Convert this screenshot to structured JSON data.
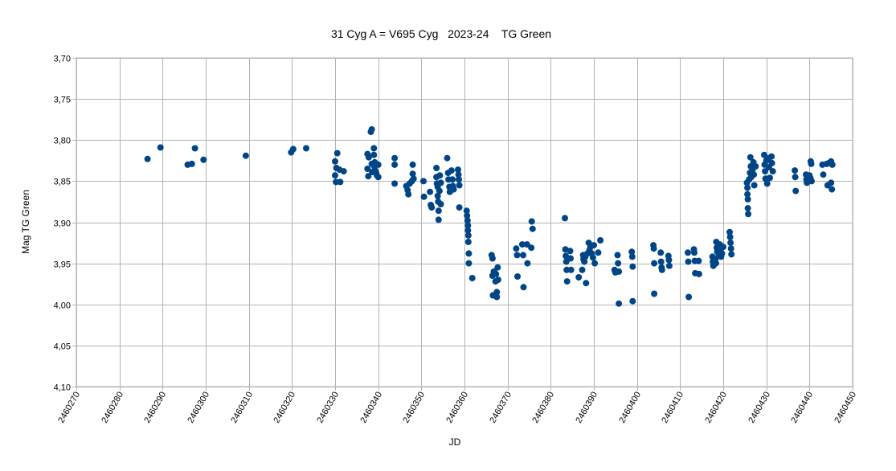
{
  "chart_data": {
    "type": "scatter",
    "title": "31 Cyg A = V695 Cyg   2023-24    TG Green",
    "xlabel": "JD",
    "ylabel": "Mag TG Green",
    "xlim": [
      2460270,
      2460450
    ],
    "ylim": [
      3.7,
      4.1
    ],
    "y_inverted": true,
    "grid": true,
    "legend": "none",
    "x_ticks": [
      2460270,
      2460280,
      2460290,
      2460300,
      2460310,
      2460320,
      2460330,
      2460340,
      2460350,
      2460360,
      2460370,
      2460380,
      2460390,
      2460400,
      2460410,
      2460420,
      2460430,
      2460440,
      2460450
    ],
    "y_ticks": [
      "3,70",
      "3,75",
      "3,80",
      "3,85",
      "3,90",
      "3,95",
      "4,00",
      "4,05",
      "4,10"
    ],
    "y_tick_values": [
      3.7,
      3.75,
      3.8,
      3.85,
      3.9,
      3.95,
      4.0,
      4.05,
      4.1
    ],
    "series": [
      {
        "name": "TG Green",
        "color": "#004586",
        "points": [
          [
            2460286.5,
            3.823
          ],
          [
            2460289.5,
            3.809
          ],
          [
            2460295.8,
            3.83
          ],
          [
            2460296.8,
            3.829
          ],
          [
            2460297.5,
            3.81
          ],
          [
            2460299.5,
            3.824
          ],
          [
            2460309.3,
            3.819
          ],
          [
            2460319.8,
            3.815
          ],
          [
            2460320.3,
            3.811
          ],
          [
            2460323.3,
            3.81
          ],
          [
            2460330.0,
            3.826
          ],
          [
            2460330.0,
            3.843
          ],
          [
            2460330.2,
            3.851
          ],
          [
            2460330.3,
            3.834
          ],
          [
            2460330.5,
            3.816
          ],
          [
            2460331.0,
            3.836
          ],
          [
            2460331.2,
            3.851
          ],
          [
            2460332.0,
            3.838
          ],
          [
            2460337.5,
            3.817
          ],
          [
            2460337.5,
            3.835
          ],
          [
            2460337.7,
            3.844
          ],
          [
            2460337.8,
            3.821
          ],
          [
            2460338.3,
            3.79
          ],
          [
            2460338.5,
            3.787
          ],
          [
            2460338.5,
            3.829
          ],
          [
            2460338.6,
            3.839
          ],
          [
            2460339.0,
            3.81
          ],
          [
            2460339.0,
            3.818
          ],
          [
            2460339.1,
            3.832
          ],
          [
            2460339.2,
            3.827
          ],
          [
            2460339.3,
            3.837
          ],
          [
            2460339.5,
            3.84
          ],
          [
            2460339.7,
            3.843
          ],
          [
            2460340.0,
            3.83
          ],
          [
            2460340.0,
            3.845
          ],
          [
            2460343.8,
            3.822
          ],
          [
            2460343.8,
            3.83
          ],
          [
            2460343.8,
            3.853
          ],
          [
            2460346.5,
            3.856
          ],
          [
            2460346.8,
            3.861
          ],
          [
            2460347.0,
            3.866
          ],
          [
            2460347.3,
            3.853
          ],
          [
            2460347.8,
            3.85
          ],
          [
            2460348.0,
            3.83
          ],
          [
            2460348.0,
            3.841
          ],
          [
            2460348.2,
            3.847
          ],
          [
            2460350.5,
            3.85
          ],
          [
            2460350.6,
            3.869
          ],
          [
            2460352.0,
            3.863
          ],
          [
            2460352.2,
            3.879
          ],
          [
            2460352.4,
            3.882
          ],
          [
            2460353.5,
            3.834
          ],
          [
            2460353.5,
            3.845
          ],
          [
            2460353.6,
            3.853
          ],
          [
            2460353.8,
            3.857
          ],
          [
            2460353.8,
            3.868
          ],
          [
            2460353.9,
            3.875
          ],
          [
            2460354.0,
            3.886
          ],
          [
            2460354.0,
            3.897
          ],
          [
            2460354.2,
            3.862
          ],
          [
            2460354.3,
            3.843
          ],
          [
            2460354.5,
            3.878
          ],
          [
            2460354.5,
            3.852
          ],
          [
            2460356.0,
            3.822
          ],
          [
            2460356.2,
            3.84
          ],
          [
            2460356.3,
            3.848
          ],
          [
            2460356.5,
            3.857
          ],
          [
            2460356.6,
            3.863
          ],
          [
            2460357.0,
            3.837
          ],
          [
            2460357.2,
            3.848
          ],
          [
            2460357.3,
            3.856
          ],
          [
            2460357.5,
            3.86
          ],
          [
            2460358.5,
            3.836
          ],
          [
            2460358.6,
            3.842
          ],
          [
            2460358.7,
            3.848
          ],
          [
            2460358.8,
            3.855
          ],
          [
            2460358.8,
            3.882
          ],
          [
            2460360.5,
            3.886
          ],
          [
            2460360.6,
            3.892
          ],
          [
            2460360.7,
            3.898
          ],
          [
            2460360.8,
            3.904
          ],
          [
            2460360.8,
            3.91
          ],
          [
            2460360.9,
            3.916
          ],
          [
            2460360.9,
            3.924
          ],
          [
            2460361.0,
            3.938
          ],
          [
            2460361.0,
            3.95
          ],
          [
            2460361.8,
            3.968
          ],
          [
            2460366.3,
            3.94
          ],
          [
            2460366.5,
            3.944
          ],
          [
            2460366.5,
            3.965
          ],
          [
            2460366.6,
            3.989
          ],
          [
            2460366.8,
            3.96
          ],
          [
            2460367.2,
            3.972
          ],
          [
            2460367.3,
            3.963
          ],
          [
            2460367.5,
            3.985
          ],
          [
            2460367.5,
            3.991
          ],
          [
            2460367.7,
            3.955
          ],
          [
            2460367.8,
            3.97
          ],
          [
            2460372.0,
            3.932
          ],
          [
            2460372.2,
            3.94
          ],
          [
            2460372.3,
            3.966
          ],
          [
            2460373.4,
            3.927
          ],
          [
            2460373.6,
            3.94
          ],
          [
            2460373.7,
            3.979
          ],
          [
            2460374.5,
            3.927
          ],
          [
            2460374.6,
            3.95
          ],
          [
            2460375.5,
            3.931
          ],
          [
            2460375.6,
            3.899
          ],
          [
            2460375.8,
            3.908
          ],
          [
            2460383.3,
            3.895
          ],
          [
            2460383.4,
            3.933
          ],
          [
            2460383.5,
            3.941
          ],
          [
            2460383.6,
            3.948
          ],
          [
            2460383.7,
            3.958
          ],
          [
            2460383.8,
            3.972
          ],
          [
            2460384.5,
            3.935
          ],
          [
            2460384.6,
            3.944
          ],
          [
            2460384.7,
            3.958
          ],
          [
            2460386.5,
            3.967
          ],
          [
            2460387.3,
            3.958
          ],
          [
            2460387.5,
            3.94
          ],
          [
            2460387.6,
            3.945
          ],
          [
            2460387.8,
            3.948
          ],
          [
            2460388.0,
            3.942
          ],
          [
            2460388.2,
            3.974
          ],
          [
            2460388.5,
            3.938
          ],
          [
            2460388.8,
            3.925
          ],
          [
            2460389.0,
            3.934
          ],
          [
            2460389.2,
            3.93
          ],
          [
            2460389.5,
            3.938
          ],
          [
            2460389.8,
            3.943
          ],
          [
            2460390.0,
            3.928
          ],
          [
            2460390.2,
            3.95
          ],
          [
            2460391.0,
            3.937
          ],
          [
            2460391.5,
            3.922
          ],
          [
            2460394.8,
            3.958
          ],
          [
            2460395.0,
            3.961
          ],
          [
            2460395.5,
            3.94
          ],
          [
            2460395.6,
            3.95
          ],
          [
            2460395.8,
            3.96
          ],
          [
            2460395.8,
            3.999
          ],
          [
            2460398.8,
            3.936
          ],
          [
            2460398.9,
            3.942
          ],
          [
            2460399.0,
            3.954
          ],
          [
            2460399.0,
            3.996
          ],
          [
            2460403.8,
            3.928
          ],
          [
            2460403.9,
            3.932
          ],
          [
            2460404.0,
            3.95
          ],
          [
            2460404.0,
            3.987
          ],
          [
            2460405.5,
            3.937
          ],
          [
            2460405.6,
            3.948
          ],
          [
            2460405.7,
            3.955
          ],
          [
            2460405.8,
            3.958
          ],
          [
            2460407.3,
            3.941
          ],
          [
            2460407.4,
            3.946
          ],
          [
            2460407.5,
            3.953
          ],
          [
            2460411.8,
            3.937
          ],
          [
            2460411.9,
            3.948
          ],
          [
            2460412.0,
            3.991
          ],
          [
            2460413.2,
            3.933
          ],
          [
            2460413.3,
            3.937
          ],
          [
            2460413.4,
            3.947
          ],
          [
            2460413.5,
            3.962
          ],
          [
            2460414.3,
            3.947
          ],
          [
            2460414.4,
            3.963
          ],
          [
            2460417.5,
            3.942
          ],
          [
            2460417.6,
            3.948
          ],
          [
            2460417.7,
            3.953
          ],
          [
            2460418.2,
            3.945
          ],
          [
            2460418.3,
            3.95
          ],
          [
            2460418.4,
            3.924
          ],
          [
            2460418.5,
            3.931
          ],
          [
            2460418.6,
            3.936
          ],
          [
            2460419.0,
            3.94
          ],
          [
            2460419.2,
            3.927
          ],
          [
            2460419.3,
            3.935
          ],
          [
            2460419.5,
            3.942
          ],
          [
            2460419.7,
            3.938
          ],
          [
            2460420.0,
            3.93
          ],
          [
            2460421.5,
            3.912
          ],
          [
            2460421.6,
            3.918
          ],
          [
            2460421.7,
            3.925
          ],
          [
            2460421.8,
            3.932
          ],
          [
            2460421.9,
            3.939
          ],
          [
            2460425.5,
            3.852
          ],
          [
            2460425.6,
            3.858
          ],
          [
            2460425.6,
            3.866
          ],
          [
            2460425.7,
            3.872
          ],
          [
            2460425.7,
            3.883
          ],
          [
            2460425.8,
            3.89
          ],
          [
            2460426.0,
            3.848
          ],
          [
            2460426.2,
            3.84
          ],
          [
            2460426.3,
            3.821
          ],
          [
            2460426.4,
            3.832
          ],
          [
            2460426.5,
            3.845
          ],
          [
            2460426.8,
            3.836
          ],
          [
            2460427.0,
            3.827
          ],
          [
            2460427.1,
            3.842
          ],
          [
            2460427.2,
            3.855
          ],
          [
            2460427.5,
            3.832
          ],
          [
            2460429.5,
            3.818
          ],
          [
            2460429.6,
            3.83
          ],
          [
            2460429.7,
            3.838
          ],
          [
            2460429.8,
            3.847
          ],
          [
            2460430.0,
            3.825
          ],
          [
            2460430.2,
            3.853
          ],
          [
            2460430.5,
            3.822
          ],
          [
            2460430.6,
            3.833
          ],
          [
            2460430.8,
            3.846
          ],
          [
            2460431.2,
            3.82
          ],
          [
            2460431.3,
            3.828
          ],
          [
            2460431.5,
            3.838
          ],
          [
            2460436.6,
            3.837
          ],
          [
            2460436.7,
            3.845
          ],
          [
            2460436.8,
            3.862
          ],
          [
            2460439.2,
            3.842
          ],
          [
            2460439.3,
            3.848
          ],
          [
            2460439.4,
            3.852
          ],
          [
            2460440.0,
            3.843
          ],
          [
            2460440.2,
            3.846
          ],
          [
            2460440.3,
            3.826
          ],
          [
            2460440.4,
            3.829
          ],
          [
            2460440.5,
            3.85
          ],
          [
            2460443.0,
            3.83
          ],
          [
            2460443.2,
            3.842
          ],
          [
            2460444.0,
            3.829
          ],
          [
            2460444.2,
            3.855
          ],
          [
            2460444.5,
            3.828
          ],
          [
            2460445.0,
            3.826
          ],
          [
            2460445.0,
            3.852
          ],
          [
            2460445.2,
            3.86
          ],
          [
            2460445.3,
            3.83
          ]
        ]
      }
    ]
  }
}
